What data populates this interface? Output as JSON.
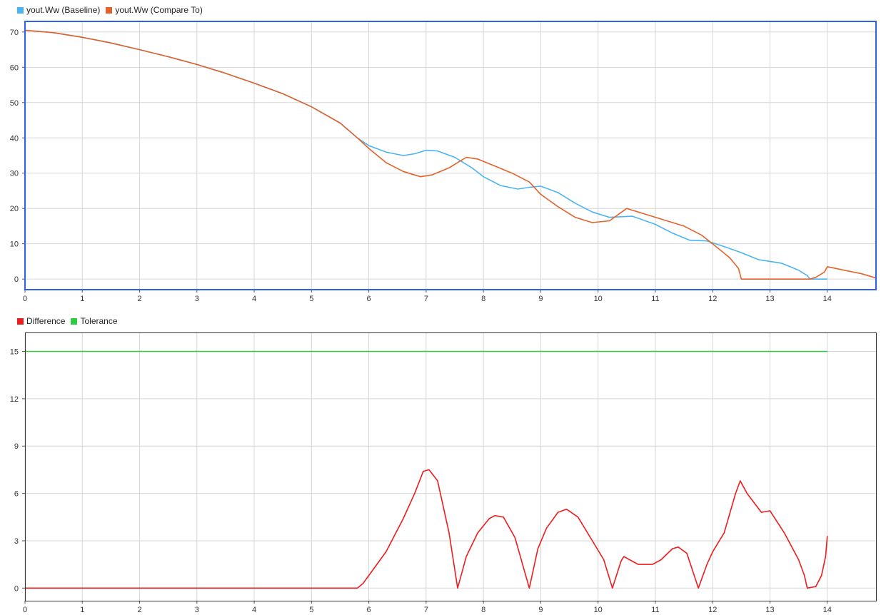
{
  "colors": {
    "baseline": "#4ab4f2",
    "compare": "#e2622a",
    "difference": "#ee1c1c",
    "tolerance": "#2ecc40",
    "selected_border": "#2f62e8",
    "grid": "#d6d6d6"
  },
  "chart_data": [
    {
      "type": "line",
      "legend_placement": "top-left",
      "selected": true,
      "grid": true,
      "xlim": [
        0,
        14.85
      ],
      "ylim": [
        -3,
        73
      ],
      "x_ticks": [
        0,
        1,
        2,
        3,
        4,
        5,
        6,
        7,
        8,
        9,
        10,
        11,
        12,
        13,
        14
      ],
      "y_ticks": [
        0,
        10,
        20,
        30,
        40,
        50,
        60,
        70
      ],
      "series": [
        {
          "name": "yout.Ww (Baseline)",
          "color": "#4ab4f2",
          "points": [
            [
              0,
              70.5
            ],
            [
              0.5,
              69.8
            ],
            [
              1,
              68.5
            ],
            [
              1.5,
              66.9
            ],
            [
              2,
              65
            ],
            [
              2.5,
              63
            ],
            [
              3,
              60.8
            ],
            [
              3.5,
              58.3
            ],
            [
              4,
              55.5
            ],
            [
              4.5,
              52.5
            ],
            [
              5,
              48.8
            ],
            [
              5.5,
              44.2
            ],
            [
              5.8,
              40
            ],
            [
              6,
              37.8
            ],
            [
              6.3,
              36
            ],
            [
              6.6,
              35
            ],
            [
              6.8,
              35.5
            ],
            [
              7,
              36.5
            ],
            [
              7.2,
              36.3
            ],
            [
              7.5,
              34.5
            ],
            [
              7.8,
              31.5
            ],
            [
              8,
              29
            ],
            [
              8.3,
              26.5
            ],
            [
              8.6,
              25.5
            ],
            [
              8.8,
              26
            ],
            [
              9,
              26.3
            ],
            [
              9.3,
              24.5
            ],
            [
              9.6,
              21.5
            ],
            [
              9.9,
              19
            ],
            [
              10.2,
              17.5
            ],
            [
              10.6,
              17.8
            ],
            [
              11,
              15.5
            ],
            [
              11.3,
              13
            ],
            [
              11.6,
              11
            ],
            [
              11.9,
              10.8
            ],
            [
              12.2,
              9.2
            ],
            [
              12.5,
              7.5
            ],
            [
              12.8,
              5.5
            ],
            [
              13,
              5
            ],
            [
              13.2,
              4.5
            ],
            [
              13.5,
              2.5
            ],
            [
              13.65,
              1
            ],
            [
              13.7,
              0
            ],
            [
              14,
              0
            ]
          ]
        },
        {
          "name": "yout.Ww (Compare To)",
          "color": "#e2622a",
          "points": [
            [
              0,
              70.5
            ],
            [
              0.5,
              69.8
            ],
            [
              1,
              68.5
            ],
            [
              1.5,
              66.9
            ],
            [
              2,
              65
            ],
            [
              2.5,
              63
            ],
            [
              3,
              60.8
            ],
            [
              3.5,
              58.3
            ],
            [
              4,
              55.5
            ],
            [
              4.5,
              52.5
            ],
            [
              5,
              48.8
            ],
            [
              5.5,
              44.2
            ],
            [
              5.8,
              40
            ],
            [
              6,
              37
            ],
            [
              6.3,
              33
            ],
            [
              6.6,
              30.5
            ],
            [
              6.9,
              29
            ],
            [
              7.1,
              29.5
            ],
            [
              7.4,
              31.5
            ],
            [
              7.7,
              34.5
            ],
            [
              7.9,
              34
            ],
            [
              8.2,
              32
            ],
            [
              8.5,
              30
            ],
            [
              8.8,
              27.5
            ],
            [
              9,
              24
            ],
            [
              9.3,
              20.5
            ],
            [
              9.6,
              17.5
            ],
            [
              9.9,
              16
            ],
            [
              10.2,
              16.5
            ],
            [
              10.5,
              20
            ],
            [
              10.8,
              18.5
            ],
            [
              11.2,
              16.5
            ],
            [
              11.5,
              15
            ],
            [
              11.8,
              12.5
            ],
            [
              12,
              10
            ],
            [
              12.3,
              6
            ],
            [
              12.45,
              3
            ],
            [
              12.5,
              0
            ],
            [
              13.7,
              0
            ],
            [
              13.8,
              0.5
            ],
            [
              13.95,
              2
            ],
            [
              14,
              3.5
            ],
            [
              14.3,
              2.5
            ],
            [
              14.6,
              1.5
            ],
            [
              14.85,
              0.3
            ]
          ]
        }
      ]
    },
    {
      "type": "line",
      "legend_placement": "top-left",
      "selected": false,
      "grid": true,
      "xlim": [
        0,
        14.85
      ],
      "ylim": [
        -0.8,
        16.2
      ],
      "x_ticks": [
        0,
        1,
        2,
        3,
        4,
        5,
        6,
        7,
        8,
        9,
        10,
        11,
        12,
        13,
        14
      ],
      "y_ticks": [
        0,
        3,
        6,
        9,
        12,
        15
      ],
      "series": [
        {
          "name": "Difference",
          "color": "#ee1c1c",
          "points": [
            [
              0,
              0
            ],
            [
              5.8,
              0
            ],
            [
              5.9,
              0.3
            ],
            [
              6,
              0.8
            ],
            [
              6.3,
              2.3
            ],
            [
              6.6,
              4.4
            ],
            [
              6.8,
              6
            ],
            [
              6.95,
              7.4
            ],
            [
              7.05,
              7.5
            ],
            [
              7.2,
              6.8
            ],
            [
              7.4,
              3.5
            ],
            [
              7.55,
              0
            ],
            [
              7.7,
              2
            ],
            [
              7.9,
              3.5
            ],
            [
              8.1,
              4.4
            ],
            [
              8.2,
              4.6
            ],
            [
              8.35,
              4.5
            ],
            [
              8.55,
              3.2
            ],
            [
              8.8,
              0
            ],
            [
              8.95,
              2.5
            ],
            [
              9.1,
              3.8
            ],
            [
              9.3,
              4.8
            ],
            [
              9.45,
              5
            ],
            [
              9.65,
              4.5
            ],
            [
              9.9,
              3
            ],
            [
              10.1,
              1.8
            ],
            [
              10.25,
              0
            ],
            [
              10.4,
              1.7
            ],
            [
              10.45,
              2
            ],
            [
              10.55,
              1.8
            ],
            [
              10.7,
              1.5
            ],
            [
              10.95,
              1.5
            ],
            [
              11.1,
              1.8
            ],
            [
              11.3,
              2.5
            ],
            [
              11.4,
              2.6
            ],
            [
              11.55,
              2.2
            ],
            [
              11.75,
              0
            ],
            [
              11.9,
              1.5
            ],
            [
              12,
              2.3
            ],
            [
              12.2,
              3.5
            ],
            [
              12.4,
              6
            ],
            [
              12.48,
              6.8
            ],
            [
              12.6,
              6
            ],
            [
              12.85,
              4.8
            ],
            [
              13,
              4.9
            ],
            [
              13.25,
              3.5
            ],
            [
              13.5,
              1.8
            ],
            [
              13.6,
              0.8
            ],
            [
              13.65,
              0
            ],
            [
              13.8,
              0.1
            ],
            [
              13.9,
              0.8
            ],
            [
              13.97,
              2
            ],
            [
              14,
              3.3
            ]
          ]
        },
        {
          "name": "Tolerance",
          "color": "#2ecc40",
          "points": [
            [
              0,
              15
            ],
            [
              14,
              15
            ]
          ]
        }
      ]
    }
  ]
}
